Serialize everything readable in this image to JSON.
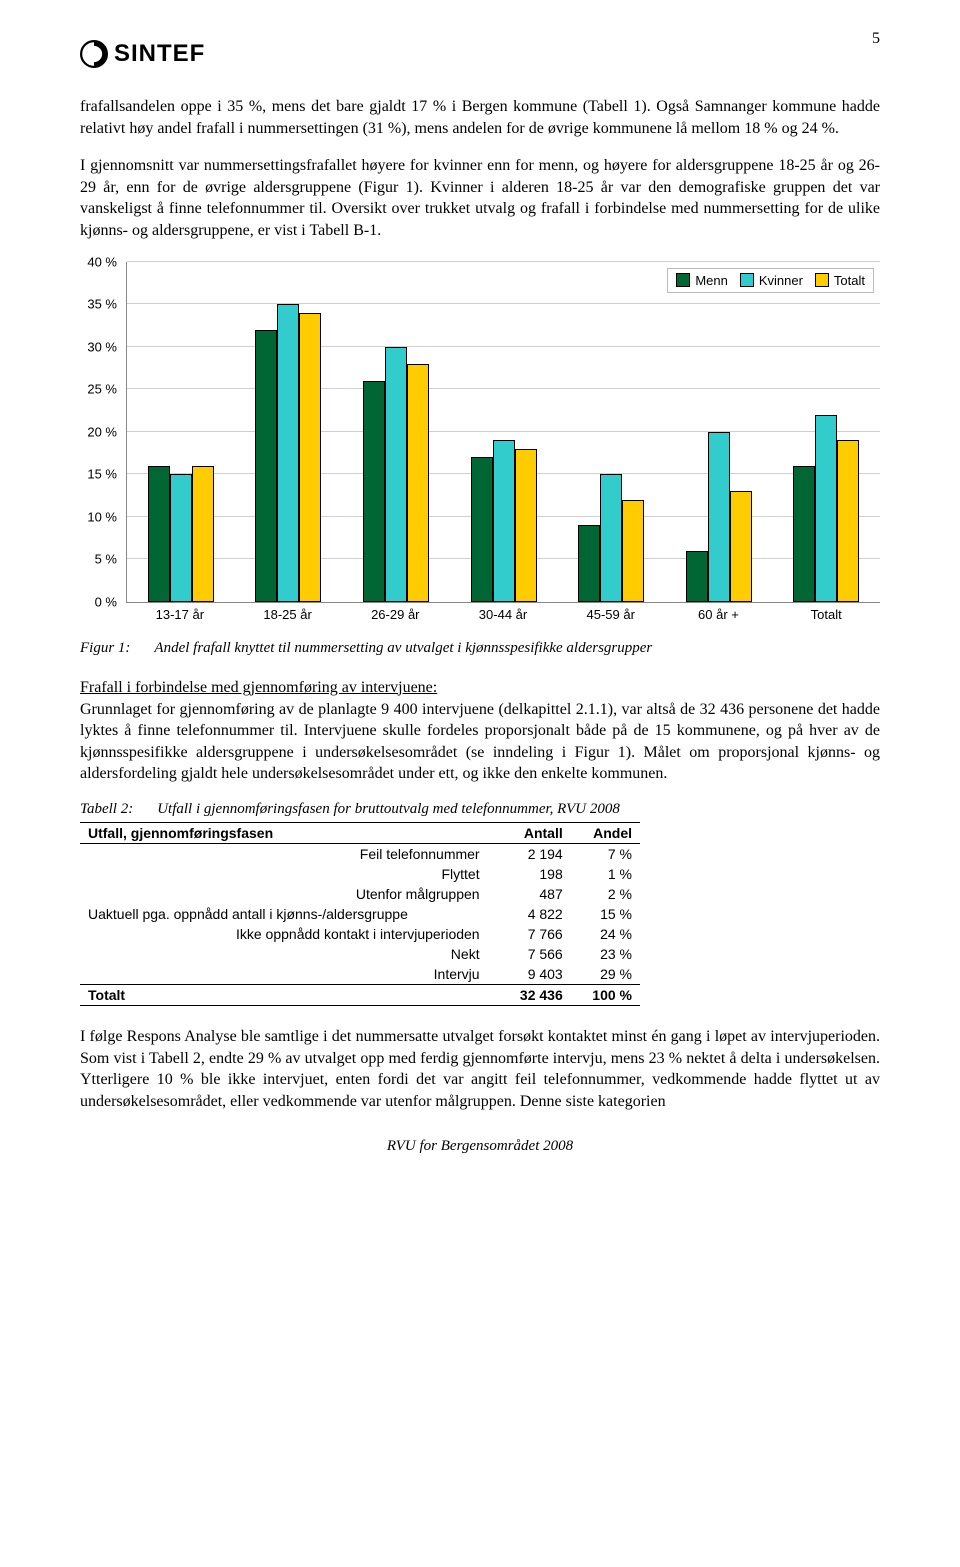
{
  "page_number": "5",
  "logo_text": "SINTEF",
  "paragraphs": {
    "p1": "frafallsandelen oppe i 35 %, mens det bare gjaldt 17 % i Bergen kommune (Tabell 1). Også Samnanger kommune hadde relativt høy andel frafall i nummersettingen (31 %), mens andelen for de øvrige kommunene lå mellom 18 % og 24 %.",
    "p2": "I gjennomsnitt var nummersettingsfrafallet høyere for kvinner enn for menn, og høyere for aldersgruppene 18-25 år og 26-29 år, enn for de øvrige aldersgruppene (Figur 1). Kvinner i alderen 18-25 år var den demografiske gruppen det var vanskeligst å finne telefonnummer til. Oversikt over trukket utvalg og frafall i forbindelse med nummersetting for de ulike kjønns- og aldersgruppene, er vist i Tabell B-1.",
    "p3": "Grunnlaget for gjennomføring av de planlagte 9 400 intervjuene (delkapittel 2.1.1), var altså de 32 436 personene det hadde lyktes å finne telefonnummer til. Intervjuene skulle fordeles proporsjonalt både på de 15 kommunene, og på hver av de kjønnsspesifikke aldersgruppene i undersøkelsesområdet (se inndeling i Figur 1). Målet om proporsjonal kjønns- og aldersfordeling gjaldt hele undersøkelsesområdet under ett, og ikke den enkelte kommunen.",
    "p4": "I følge Respons Analyse ble samtlige i det nummersatte utvalget forsøkt kontaktet minst én gang i løpet av intervjuperioden. Som vist i Tabell 2, endte 29 % av utvalget opp med ferdig gjennomførte intervju, mens 23 % nektet å delta i undersøkelsen. Ytterligere 10 % ble ikke intervjuet, enten fordi det var angitt feil telefonnummer, vedkommende hadde flyttet ut av undersøkelsesområdet, eller vedkommende var utenfor målgruppen. Denne siste kategorien"
  },
  "section_head": "Frafall i forbindelse med gjennomføring av intervjuene:",
  "figure": {
    "label": "Figur 1:",
    "caption": "Andel frafall knyttet til nummersetting av utvalget i kjønnsspesifikke aldersgrupper"
  },
  "table_caption": {
    "label": "Tabell 2:",
    "caption": "Utfall i gjennomføringsfasen for bruttoutvalg med telefonnummer, RVU 2008"
  },
  "chart": {
    "type": "bar",
    "ymax": 40,
    "ytick_step": 5,
    "ylabels": [
      "40 %",
      "35 %",
      "30 %",
      "25 %",
      "20 %",
      "15 %",
      "10 %",
      "5 %",
      "0 %"
    ],
    "categories": [
      "13-17 år",
      "18-25 år",
      "26-29 år",
      "30-44 år",
      "45-59 år",
      "60 år +",
      "Totalt"
    ],
    "series": [
      {
        "name": "Menn",
        "color": "#006633"
      },
      {
        "name": "Kvinner",
        "color": "#33cccc"
      },
      {
        "name": "Totalt",
        "color": "#ffcc00"
      }
    ],
    "values": {
      "Menn": [
        16,
        32,
        26,
        17,
        9,
        6,
        16
      ],
      "Kvinner": [
        15,
        35,
        30,
        19,
        15,
        20,
        22
      ],
      "Totalt": [
        16,
        34,
        28,
        18,
        12,
        13,
        19
      ]
    },
    "grid_color": "#d0d0d0",
    "axis_color": "#888888",
    "bar_border": "#000000",
    "font_family": "Arial",
    "label_fontsize": 13
  },
  "table": {
    "columns": [
      "Utfall, gjennomføringsfasen",
      "Antall",
      "Andel"
    ],
    "rows": [
      {
        "label": "Feil telefonnummer",
        "antall": "2 194",
        "andel": "7 %"
      },
      {
        "label": "Flyttet",
        "antall": "198",
        "andel": "1 %"
      },
      {
        "label": "Utenfor målgruppen",
        "antall": "487",
        "andel": "2 %"
      },
      {
        "label": "Uaktuell pga. oppnådd antall i kjønns-/aldersgruppe",
        "antall": "4 822",
        "andel": "15 %",
        "left": true
      },
      {
        "label": "Ikke oppnådd kontakt i intervjuperioden",
        "antall": "7 766",
        "andel": "24 %"
      },
      {
        "label": "Nekt",
        "antall": "7 566",
        "andel": "23 %"
      },
      {
        "label": "Intervju",
        "antall": "9 403",
        "andel": "29 %"
      }
    ],
    "total": {
      "label": "Totalt",
      "antall": "32 436",
      "andel": "100 %"
    }
  },
  "footer": "RVU for Bergensområdet 2008"
}
